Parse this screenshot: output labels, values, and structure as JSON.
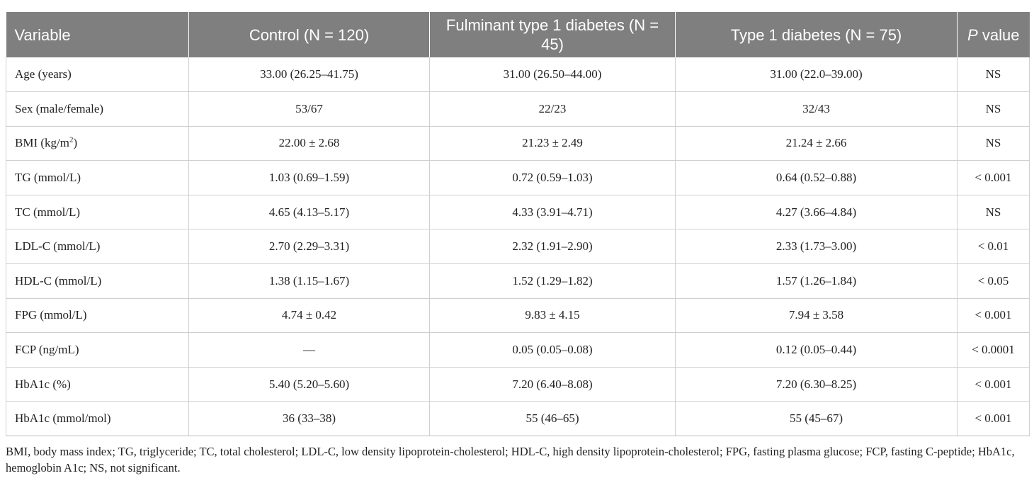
{
  "table": {
    "headers": [
      {
        "text": "Variable",
        "suffix": ""
      },
      {
        "text": "Control (N = 120)",
        "suffix": ""
      },
      {
        "text": "Fulminant type 1 diabetes (N = 45)",
        "suffix": ""
      },
      {
        "text": "Type 1 diabetes (N = 75)",
        "suffix": ""
      },
      {
        "text": "P",
        "suffix": " value"
      }
    ],
    "rows": [
      {
        "variable": "Age (years)",
        "sup": "",
        "variable_suffix": "",
        "control": "33.00 (26.25–41.75)",
        "fulminant": "31.00 (26.50–44.00)",
        "type1": "31.00 (22.0–39.00)",
        "p": "NS"
      },
      {
        "variable": "Sex (male/female)",
        "sup": "",
        "variable_suffix": "",
        "control": "53/67",
        "fulminant": "22/23",
        "type1": "32/43",
        "p": "NS"
      },
      {
        "variable": "BMI (kg/m",
        "sup": "2",
        "variable_suffix": ")",
        "control": "22.00 ± 2.68",
        "fulminant": "21.23 ± 2.49",
        "type1": "21.24 ± 2.66",
        "p": "NS"
      },
      {
        "variable": "TG (mmol/L)",
        "sup": "",
        "variable_suffix": "",
        "control": "1.03 (0.69–1.59)",
        "fulminant": "0.72 (0.59–1.03)",
        "type1": "0.64 (0.52–0.88)",
        "p": "< 0.001"
      },
      {
        "variable": "TC (mmol/L)",
        "sup": "",
        "variable_suffix": "",
        "control": "4.65 (4.13–5.17)",
        "fulminant": "4.33 (3.91–4.71)",
        "type1": "4.27 (3.66–4.84)",
        "p": "NS"
      },
      {
        "variable": "LDL-C (mmol/L)",
        "sup": "",
        "variable_suffix": "",
        "control": "2.70 (2.29–3.31)",
        "fulminant": "2.32 (1.91–2.90)",
        "type1": "2.33 (1.73–3.00)",
        "p": "< 0.01"
      },
      {
        "variable": "HDL-C (mmol/L)",
        "sup": "",
        "variable_suffix": "",
        "control": "1.38 (1.15–1.67)",
        "fulminant": "1.52 (1.29–1.82)",
        "type1": "1.57 (1.26–1.84)",
        "p": "< 0.05"
      },
      {
        "variable": "FPG (mmol/L)",
        "sup": "",
        "variable_suffix": "",
        "control": "4.74 ± 0.42",
        "fulminant": "9.83 ± 4.15",
        "type1": "7.94 ± 3.58",
        "p": "< 0.001"
      },
      {
        "variable": "FCP (ng/mL)",
        "sup": "",
        "variable_suffix": "",
        "control": "—",
        "fulminant": "0.05 (0.05–0.08)",
        "type1": "0.12 (0.05–0.44)",
        "p": "< 0.0001"
      },
      {
        "variable": "HbA1c (%)",
        "sup": "",
        "variable_suffix": "",
        "control": "5.40 (5.20–5.60)",
        "fulminant": "7.20 (6.40–8.08)",
        "type1": "7.20 (6.30–8.25)",
        "p": "< 0.001"
      },
      {
        "variable": "HbA1c (mmol/mol)",
        "sup": "",
        "variable_suffix": "",
        "control": "36 (33–38)",
        "fulminant": "55 (46–65)",
        "type1": "55 (45–67)",
        "p": "< 0.001"
      }
    ]
  },
  "footnote": "BMI, body mass index; TG, triglyceride; TC, total cholesterol; LDL-C, low density lipoprotein-cholesterol; HDL-C, high density lipoprotein-cholesterol; FPG, fasting plasma glucose; FCP, fasting C-peptide; HbA1c, hemoglobin A1c; NS, not significant."
}
